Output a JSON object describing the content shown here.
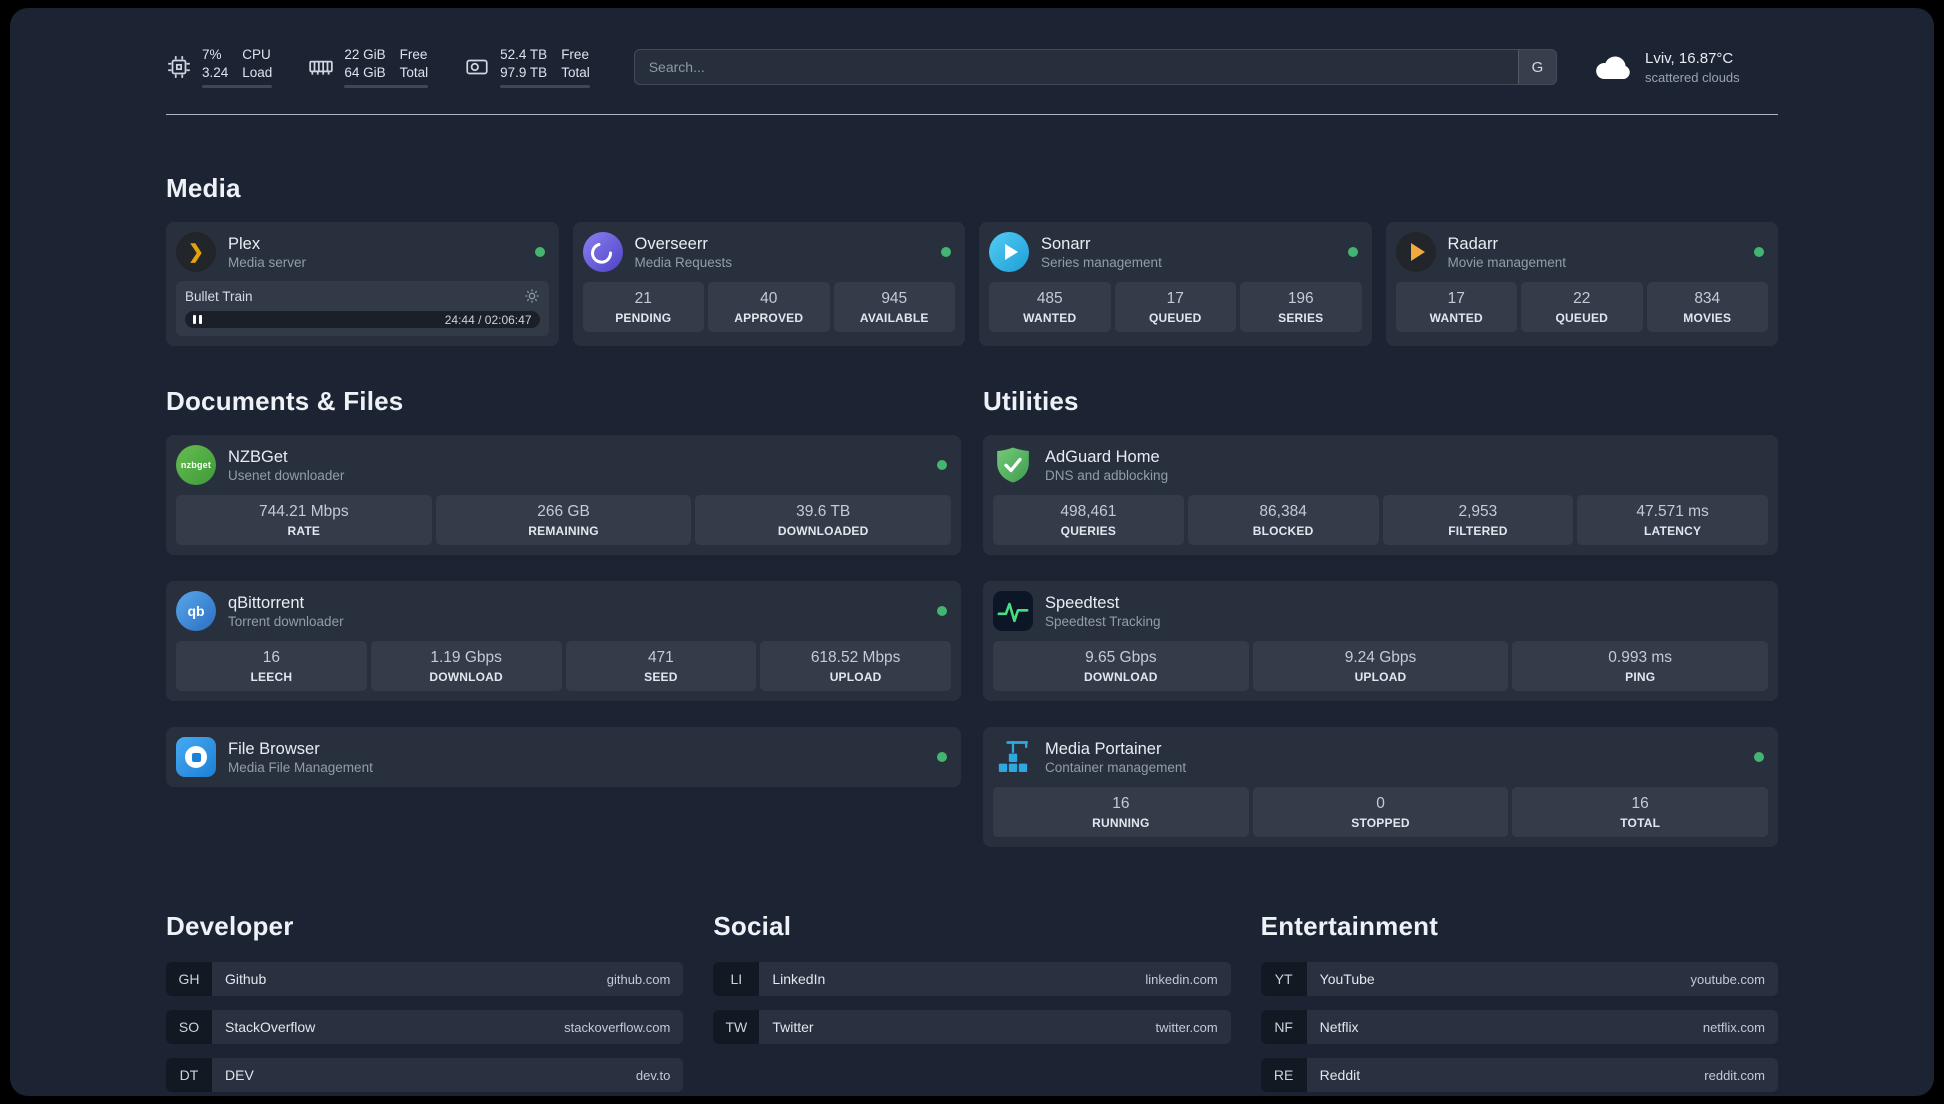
{
  "topbar": {
    "cpu": {
      "value_top": "7%",
      "value_bottom": "3.24",
      "label_top": "CPU",
      "label_bottom": "Load",
      "progress_pct": 7
    },
    "memory": {
      "value_top": "22 GiB",
      "value_bottom": "64 GiB",
      "label_top": "Free",
      "label_bottom": "Total",
      "progress_pct": 66
    },
    "disk": {
      "value_top": "52.4 TB",
      "value_bottom": "97.9 TB",
      "label_top": "Free",
      "label_bottom": "Total",
      "progress_pct": 47
    },
    "search": {
      "placeholder": "Search...",
      "engine_label": "G"
    },
    "weather": {
      "location": "Lviv, 16.87°C",
      "condition": "scattered clouds"
    }
  },
  "media_section": {
    "title": "Media",
    "plex": {
      "name": "Plex",
      "desc": "Media server",
      "now_playing": {
        "title": "Bullet Train",
        "time": "24:44 / 02:06:47",
        "progress_pct": 19
      }
    },
    "overseerr": {
      "name": "Overseerr",
      "desc": "Media Requests",
      "stats": [
        {
          "value": "21",
          "label": "PENDING"
        },
        {
          "value": "40",
          "label": "APPROVED"
        },
        {
          "value": "945",
          "label": "AVAILABLE"
        }
      ]
    },
    "sonarr": {
      "name": "Sonarr",
      "desc": "Series management",
      "stats": [
        {
          "value": "485",
          "label": "WANTED"
        },
        {
          "value": "17",
          "label": "QUEUED"
        },
        {
          "value": "196",
          "label": "SERIES"
        }
      ]
    },
    "radarr": {
      "name": "Radarr",
      "desc": "Movie management",
      "stats": [
        {
          "value": "17",
          "label": "WANTED"
        },
        {
          "value": "22",
          "label": "QUEUED"
        },
        {
          "value": "834",
          "label": "MOVIES"
        }
      ]
    }
  },
  "documents_section": {
    "title": "Documents & Files",
    "nzbget": {
      "name": "NZBGet",
      "desc": "Usenet downloader",
      "icon_text": "nzbget",
      "stats": [
        {
          "value": "744.21 Mbps",
          "label": "RATE"
        },
        {
          "value": "266 GB",
          "label": "REMAINING"
        },
        {
          "value": "39.6 TB",
          "label": "DOWNLOADED"
        }
      ]
    },
    "qbittorrent": {
      "name": "qBittorrent",
      "desc": "Torrent downloader",
      "icon_text": "qb",
      "stats": [
        {
          "value": "16",
          "label": "LEECH"
        },
        {
          "value": "1.19 Gbps",
          "label": "DOWNLOAD"
        },
        {
          "value": "471",
          "label": "SEED"
        },
        {
          "value": "618.52 Mbps",
          "label": "UPLOAD"
        }
      ]
    },
    "filebrowser": {
      "name": "File Browser",
      "desc": "Media File Management"
    }
  },
  "utilities_section": {
    "title": "Utilities",
    "adguard": {
      "name": "AdGuard Home",
      "desc": "DNS and adblocking",
      "stats": [
        {
          "value": "498,461",
          "label": "QUERIES"
        },
        {
          "value": "86,384",
          "label": "BLOCKED"
        },
        {
          "value": "2,953",
          "label": "FILTERED"
        },
        {
          "value": "47.571 ms",
          "label": "LATENCY"
        }
      ]
    },
    "speedtest": {
      "name": "Speedtest",
      "desc": "Speedtest Tracking",
      "stats": [
        {
          "value": "9.65 Gbps",
          "label": "DOWNLOAD"
        },
        {
          "value": "9.24 Gbps",
          "label": "UPLOAD"
        },
        {
          "value": "0.993 ms",
          "label": "PING"
        }
      ]
    },
    "portainer": {
      "name": "Media Portainer",
      "desc": "Container management",
      "stats": [
        {
          "value": "16",
          "label": "RUNNING"
        },
        {
          "value": "0",
          "label": "STOPPED"
        },
        {
          "value": "16",
          "label": "TOTAL"
        }
      ]
    }
  },
  "bookmarks": {
    "developer": {
      "title": "Developer",
      "items": [
        {
          "abbr": "GH",
          "name": "Github",
          "url": "github.com"
        },
        {
          "abbr": "SO",
          "name": "StackOverflow",
          "url": "stackoverflow.com"
        },
        {
          "abbr": "DT",
          "name": "DEV",
          "url": "dev.to"
        }
      ]
    },
    "social": {
      "title": "Social",
      "items": [
        {
          "abbr": "LI",
          "name": "LinkedIn",
          "url": "linkedin.com"
        },
        {
          "abbr": "TW",
          "name": "Twitter",
          "url": "twitter.com"
        }
      ]
    },
    "entertainment": {
      "title": "Entertainment",
      "items": [
        {
          "abbr": "YT",
          "name": "YouTube",
          "url": "youtube.com"
        },
        {
          "abbr": "NF",
          "name": "Netflix",
          "url": "netflix.com"
        },
        {
          "abbr": "RE",
          "name": "Reddit",
          "url": "reddit.com"
        }
      ]
    }
  },
  "colors": {
    "status_online": "#43b571",
    "background": "#1c2433"
  }
}
